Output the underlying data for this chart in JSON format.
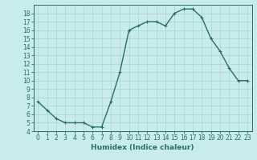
{
  "x": [
    0,
    1,
    2,
    3,
    4,
    5,
    6,
    7,
    8,
    9,
    10,
    11,
    12,
    13,
    14,
    15,
    16,
    17,
    18,
    19,
    20,
    21,
    22,
    23
  ],
  "y": [
    7.5,
    6.5,
    5.5,
    5.0,
    5.0,
    5.0,
    4.5,
    4.5,
    7.5,
    11.0,
    16.0,
    16.5,
    17.0,
    17.0,
    16.5,
    18.0,
    18.5,
    18.5,
    17.5,
    15.0,
    13.5,
    11.5,
    10.0,
    10.0
  ],
  "line_color": "#2a6e60",
  "marker_color": "#2a6e60",
  "bg_color": "#c8ecec",
  "grid_color": "#a8d4d4",
  "xlabel": "Humidex (Indice chaleur)",
  "ylim": [
    4,
    19
  ],
  "xlim": [
    -0.5,
    23.5
  ],
  "yticks": [
    4,
    5,
    6,
    7,
    8,
    9,
    10,
    11,
    12,
    13,
    14,
    15,
    16,
    17,
    18
  ],
  "xticks": [
    0,
    1,
    2,
    3,
    4,
    5,
    6,
    7,
    8,
    9,
    10,
    11,
    12,
    13,
    14,
    15,
    16,
    17,
    18,
    19,
    20,
    21,
    22,
    23
  ],
  "tick_label_fontsize": 5.5,
  "xlabel_fontsize": 6.5,
  "marker_size": 2.5,
  "line_width": 1.0
}
